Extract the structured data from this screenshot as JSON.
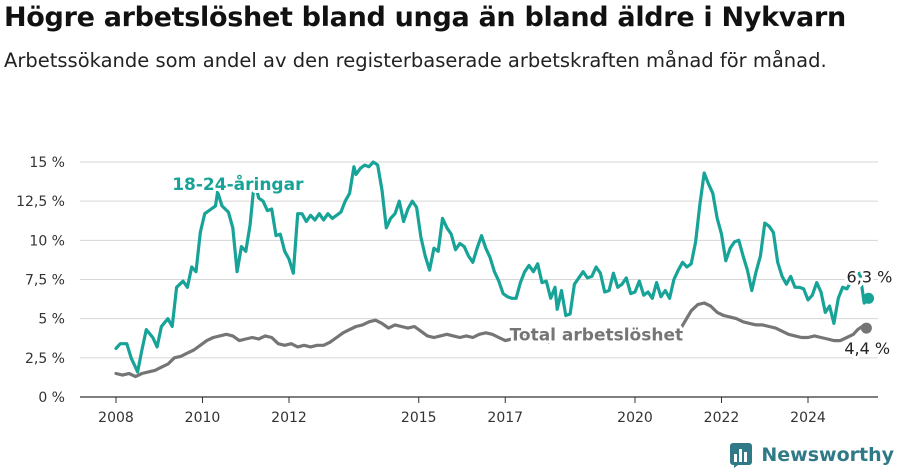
{
  "header": {
    "title": "Högre arbetslöshet bland unga än bland äldre i Nykvarn",
    "subtitle": "Arbetssökande som andel av den registerbaserade arbetskraften månad för månad."
  },
  "brand": {
    "name": "Newsworthy",
    "icon": "bar-chart-logo-icon"
  },
  "colors": {
    "youth": "#17a398",
    "total": "#757575",
    "grid": "#d6d6d6",
    "brand": "#2f7a86"
  },
  "chart_data": {
    "type": "line",
    "x_range": [
      2007.5,
      2025.4
    ],
    "ylim": [
      0,
      15
    ],
    "xticks": [
      {
        "v": 2008,
        "label": "2008"
      },
      {
        "v": 2010,
        "label": "2010"
      },
      {
        "v": 2012,
        "label": "2012"
      },
      {
        "v": 2015,
        "label": "2015"
      },
      {
        "v": 2017,
        "label": "2017"
      },
      {
        "v": 2020,
        "label": "2020"
      },
      {
        "v": 2022,
        "label": "2022"
      },
      {
        "v": 2024,
        "label": "2024"
      }
    ],
    "yticks": [
      {
        "v": 0,
        "label": "0 %"
      },
      {
        "v": 2.5,
        "label": "2,5 %"
      },
      {
        "v": 5,
        "label": "5 %"
      },
      {
        "v": 7.5,
        "label": "7,5 %"
      },
      {
        "v": 10,
        "label": "10 %"
      },
      {
        "v": 12.5,
        "label": "12,5 %"
      },
      {
        "v": 15,
        "label": "15 %"
      }
    ],
    "grid": true,
    "series": [
      {
        "name": "18-24-åringar",
        "label_at": [
          2009.3,
          13.2
        ],
        "end_label": "6,3 %",
        "points": [
          [
            2008.0,
            3.1
          ],
          [
            2008.1,
            3.4
          ],
          [
            2008.25,
            3.4
          ],
          [
            2008.35,
            2.5
          ],
          [
            2008.5,
            1.6
          ],
          [
            2008.6,
            3.0
          ],
          [
            2008.7,
            4.3
          ],
          [
            2008.85,
            3.8
          ],
          [
            2008.95,
            3.2
          ],
          [
            2009.05,
            4.5
          ],
          [
            2009.2,
            5.0
          ],
          [
            2009.3,
            4.5
          ],
          [
            2009.4,
            7.0
          ],
          [
            2009.55,
            7.4
          ],
          [
            2009.65,
            7.0
          ],
          [
            2009.75,
            8.3
          ],
          [
            2009.85,
            8.0
          ],
          [
            2009.95,
            10.5
          ],
          [
            2010.05,
            11.7
          ],
          [
            2010.2,
            12.0
          ],
          [
            2010.3,
            12.2
          ],
          [
            2010.35,
            13.1
          ],
          [
            2010.45,
            12.2
          ],
          [
            2010.6,
            11.8
          ],
          [
            2010.7,
            10.8
          ],
          [
            2010.8,
            8.0
          ],
          [
            2010.9,
            9.6
          ],
          [
            2011.0,
            9.3
          ],
          [
            2011.1,
            11.0
          ],
          [
            2011.2,
            13.8
          ],
          [
            2011.3,
            12.7
          ],
          [
            2011.4,
            12.5
          ],
          [
            2011.5,
            11.9
          ],
          [
            2011.6,
            12.0
          ],
          [
            2011.7,
            10.3
          ],
          [
            2011.8,
            10.4
          ],
          [
            2011.9,
            9.3
          ],
          [
            2012.0,
            8.8
          ],
          [
            2012.1,
            7.9
          ],
          [
            2012.2,
            11.7
          ],
          [
            2012.3,
            11.7
          ],
          [
            2012.4,
            11.2
          ],
          [
            2012.5,
            11.6
          ],
          [
            2012.6,
            11.3
          ],
          [
            2012.7,
            11.7
          ],
          [
            2012.8,
            11.3
          ],
          [
            2012.9,
            11.7
          ],
          [
            2013.0,
            11.4
          ],
          [
            2013.1,
            11.6
          ],
          [
            2013.2,
            11.8
          ],
          [
            2013.3,
            12.5
          ],
          [
            2013.4,
            13.0
          ],
          [
            2013.5,
            14.7
          ],
          [
            2013.55,
            14.2
          ],
          [
            2013.65,
            14.6
          ],
          [
            2013.75,
            14.8
          ],
          [
            2013.85,
            14.7
          ],
          [
            2013.95,
            15.0
          ],
          [
            2014.05,
            14.8
          ],
          [
            2014.15,
            13.2
          ],
          [
            2014.25,
            10.8
          ],
          [
            2014.35,
            11.4
          ],
          [
            2014.45,
            11.7
          ],
          [
            2014.55,
            12.5
          ],
          [
            2014.65,
            11.2
          ],
          [
            2014.75,
            12.0
          ],
          [
            2014.85,
            12.5
          ],
          [
            2014.95,
            12.1
          ],
          [
            2015.05,
            10.2
          ],
          [
            2015.15,
            9.0
          ],
          [
            2015.25,
            8.1
          ],
          [
            2015.35,
            9.5
          ],
          [
            2015.45,
            9.3
          ],
          [
            2015.55,
            11.4
          ],
          [
            2015.65,
            10.8
          ],
          [
            2015.75,
            10.4
          ],
          [
            2015.85,
            9.4
          ],
          [
            2015.95,
            9.8
          ],
          [
            2016.05,
            9.6
          ],
          [
            2016.15,
            9.0
          ],
          [
            2016.25,
            8.6
          ],
          [
            2016.35,
            9.5
          ],
          [
            2016.45,
            10.3
          ],
          [
            2016.55,
            9.5
          ],
          [
            2016.65,
            8.9
          ],
          [
            2016.75,
            8.0
          ],
          [
            2016.85,
            7.4
          ],
          [
            2016.95,
            6.6
          ],
          [
            2017.05,
            6.4
          ],
          [
            2017.15,
            6.3
          ],
          [
            2017.25,
            6.3
          ],
          [
            2017.35,
            7.3
          ],
          [
            2017.45,
            8.0
          ],
          [
            2017.55,
            8.4
          ],
          [
            2017.65,
            8.0
          ],
          [
            2017.75,
            8.5
          ],
          [
            2017.85,
            7.3
          ],
          [
            2017.95,
            7.4
          ],
          [
            2018.05,
            6.3
          ],
          [
            2018.15,
            7.0
          ],
          [
            2018.2,
            5.6
          ],
          [
            2018.3,
            6.8
          ],
          [
            2018.4,
            5.2
          ],
          [
            2018.5,
            5.3
          ],
          [
            2018.6,
            7.2
          ],
          [
            2018.7,
            7.6
          ],
          [
            2018.8,
            8.0
          ],
          [
            2018.9,
            7.6
          ],
          [
            2019.0,
            7.7
          ],
          [
            2019.1,
            8.3
          ],
          [
            2019.2,
            7.9
          ],
          [
            2019.3,
            6.7
          ],
          [
            2019.4,
            6.8
          ],
          [
            2019.5,
            7.9
          ],
          [
            2019.6,
            7.0
          ],
          [
            2019.7,
            7.2
          ],
          [
            2019.8,
            7.6
          ],
          [
            2019.9,
            6.6
          ],
          [
            2020.0,
            6.7
          ],
          [
            2020.1,
            7.4
          ],
          [
            2020.2,
            6.5
          ],
          [
            2020.3,
            6.7
          ],
          [
            2020.4,
            6.3
          ],
          [
            2020.5,
            7.3
          ],
          [
            2020.6,
            6.4
          ],
          [
            2020.7,
            6.8
          ],
          [
            2020.8,
            6.3
          ],
          [
            2020.9,
            7.5
          ],
          [
            2021.0,
            8.1
          ],
          [
            2021.1,
            8.6
          ],
          [
            2021.2,
            8.3
          ],
          [
            2021.3,
            8.5
          ],
          [
            2021.4,
            9.9
          ],
          [
            2021.5,
            12.3
          ],
          [
            2021.6,
            14.3
          ],
          [
            2021.7,
            13.6
          ],
          [
            2021.8,
            13.0
          ],
          [
            2021.9,
            11.4
          ],
          [
            2022.0,
            10.4
          ],
          [
            2022.1,
            8.7
          ],
          [
            2022.2,
            9.5
          ],
          [
            2022.3,
            9.9
          ],
          [
            2022.4,
            10.0
          ],
          [
            2022.5,
            9.0
          ],
          [
            2022.6,
            8.1
          ],
          [
            2022.7,
            6.8
          ],
          [
            2022.8,
            8.0
          ],
          [
            2022.9,
            9.0
          ],
          [
            2023.0,
            11.1
          ],
          [
            2023.1,
            10.9
          ],
          [
            2023.2,
            10.5
          ],
          [
            2023.3,
            8.6
          ],
          [
            2023.4,
            7.7
          ],
          [
            2023.5,
            7.2
          ],
          [
            2023.6,
            7.7
          ],
          [
            2023.7,
            7.0
          ],
          [
            2023.8,
            7.0
          ],
          [
            2023.9,
            6.9
          ],
          [
            2024.0,
            6.2
          ],
          [
            2024.1,
            6.5
          ],
          [
            2024.2,
            7.3
          ],
          [
            2024.3,
            6.7
          ],
          [
            2024.4,
            5.4
          ],
          [
            2024.5,
            5.8
          ],
          [
            2024.6,
            4.7
          ],
          [
            2024.7,
            6.3
          ],
          [
            2024.8,
            7.0
          ],
          [
            2024.9,
            6.9
          ],
          [
            2025.0,
            7.4
          ],
          [
            2025.1,
            7.8
          ],
          [
            2025.2,
            7.9
          ],
          [
            2025.3,
            6.0
          ],
          [
            2025.4,
            6.3
          ]
        ]
      },
      {
        "name": "Total arbetslöshet",
        "label_at": [
          2017.1,
          3.6
        ],
        "end_label": "4,4 %",
        "points": [
          [
            2008.0,
            1.5
          ],
          [
            2008.15,
            1.4
          ],
          [
            2008.3,
            1.5
          ],
          [
            2008.45,
            1.3
          ],
          [
            2008.6,
            1.5
          ],
          [
            2008.75,
            1.6
          ],
          [
            2008.9,
            1.7
          ],
          [
            2009.05,
            1.9
          ],
          [
            2009.2,
            2.1
          ],
          [
            2009.35,
            2.5
          ],
          [
            2009.5,
            2.6
          ],
          [
            2009.65,
            2.8
          ],
          [
            2009.8,
            3.0
          ],
          [
            2009.95,
            3.3
          ],
          [
            2010.1,
            3.6
          ],
          [
            2010.25,
            3.8
          ],
          [
            2010.4,
            3.9
          ],
          [
            2010.55,
            4.0
          ],
          [
            2010.7,
            3.9
          ],
          [
            2010.85,
            3.6
          ],
          [
            2011.0,
            3.7
          ],
          [
            2011.15,
            3.8
          ],
          [
            2011.3,
            3.7
          ],
          [
            2011.45,
            3.9
          ],
          [
            2011.6,
            3.8
          ],
          [
            2011.75,
            3.4
          ],
          [
            2011.9,
            3.3
          ],
          [
            2012.05,
            3.4
          ],
          [
            2012.2,
            3.2
          ],
          [
            2012.35,
            3.3
          ],
          [
            2012.5,
            3.2
          ],
          [
            2012.65,
            3.3
          ],
          [
            2012.8,
            3.3
          ],
          [
            2012.95,
            3.5
          ],
          [
            2013.1,
            3.8
          ],
          [
            2013.25,
            4.1
          ],
          [
            2013.4,
            4.3
          ],
          [
            2013.55,
            4.5
          ],
          [
            2013.7,
            4.6
          ],
          [
            2013.85,
            4.8
          ],
          [
            2014.0,
            4.9
          ],
          [
            2014.15,
            4.7
          ],
          [
            2014.3,
            4.4
          ],
          [
            2014.45,
            4.6
          ],
          [
            2014.6,
            4.5
          ],
          [
            2014.75,
            4.4
          ],
          [
            2014.9,
            4.5
          ],
          [
            2015.05,
            4.2
          ],
          [
            2015.2,
            3.9
          ],
          [
            2015.35,
            3.8
          ],
          [
            2015.5,
            3.9
          ],
          [
            2015.65,
            4.0
          ],
          [
            2015.8,
            3.9
          ],
          [
            2015.95,
            3.8
          ],
          [
            2016.1,
            3.9
          ],
          [
            2016.25,
            3.8
          ],
          [
            2016.4,
            4.0
          ],
          [
            2016.55,
            4.1
          ],
          [
            2016.7,
            4.0
          ],
          [
            2016.85,
            3.8
          ],
          [
            2017.0,
            3.6
          ],
          [
            2017.15,
            3.7
          ],
          [
            2017.3,
            3.8
          ],
          [
            2017.45,
            3.9
          ],
          [
            2017.6,
            3.8
          ],
          [
            2017.75,
            3.7
          ],
          [
            2017.9,
            3.6
          ],
          [
            2018.0,
            3.5
          ],
          null,
          [
            2021.0,
            4.1
          ],
          [
            2021.15,
            4.8
          ],
          [
            2021.3,
            5.5
          ],
          [
            2021.45,
            5.9
          ],
          [
            2021.6,
            6.0
          ],
          [
            2021.75,
            5.8
          ],
          [
            2021.9,
            5.4
          ],
          [
            2022.05,
            5.2
          ],
          [
            2022.2,
            5.1
          ],
          [
            2022.35,
            5.0
          ],
          [
            2022.5,
            4.8
          ],
          [
            2022.65,
            4.7
          ],
          [
            2022.8,
            4.6
          ],
          [
            2022.95,
            4.6
          ],
          [
            2023.1,
            4.5
          ],
          [
            2023.25,
            4.4
          ],
          [
            2023.4,
            4.2
          ],
          [
            2023.55,
            4.0
          ],
          [
            2023.7,
            3.9
          ],
          [
            2023.85,
            3.8
          ],
          [
            2024.0,
            3.8
          ],
          [
            2024.15,
            3.9
          ],
          [
            2024.3,
            3.8
          ],
          [
            2024.45,
            3.7
          ],
          [
            2024.6,
            3.6
          ],
          [
            2024.75,
            3.6
          ],
          [
            2024.9,
            3.8
          ],
          [
            2025.05,
            4.0
          ],
          [
            2025.15,
            4.3
          ],
          [
            2025.25,
            4.5
          ],
          [
            2025.35,
            4.4
          ]
        ]
      }
    ]
  }
}
